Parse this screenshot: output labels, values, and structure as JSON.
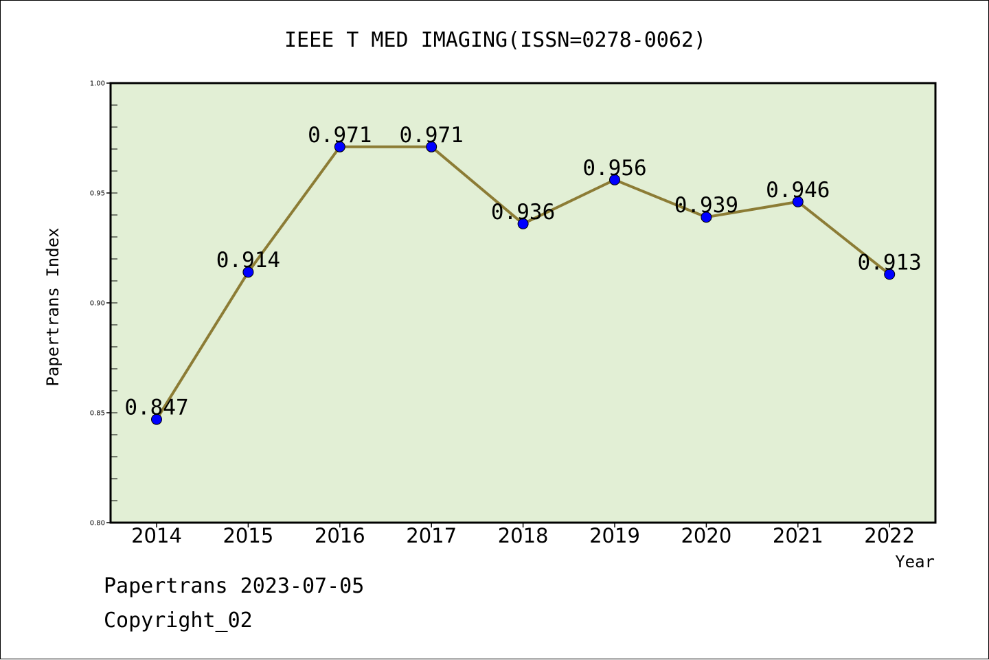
{
  "chart_data": {
    "type": "line",
    "title": "IEEE T MED IMAGING(ISSN=0278-0062)",
    "xlabel": "Year",
    "ylabel": "Papertrans Index",
    "categories": [
      "2014",
      "2015",
      "2016",
      "2017",
      "2018",
      "2019",
      "2020",
      "2021",
      "2022"
    ],
    "values": [
      0.847,
      0.914,
      0.971,
      0.971,
      0.936,
      0.956,
      0.939,
      0.946,
      0.913
    ],
    "data_labels": [
      "0.847",
      "0.914",
      "0.971",
      "0.971",
      "0.936",
      "0.956",
      "0.939",
      "0.946",
      "0.913"
    ],
    "ylim": [
      0.8,
      1.0
    ],
    "yticks": [
      0.8,
      0.85,
      0.9,
      0.95,
      1.0
    ],
    "ytick_labels": [
      "0.80",
      "0.85",
      "0.90",
      "0.95",
      "1.00"
    ],
    "grid": false,
    "legend": "none",
    "colors": {
      "plot_background": "#e2efd5",
      "line": "#8c7c35",
      "marker": "#0000ff",
      "axes": "#000000"
    }
  },
  "footer": {
    "line1": "Papertrans 2023-07-05",
    "line2": "Copyright_02"
  }
}
